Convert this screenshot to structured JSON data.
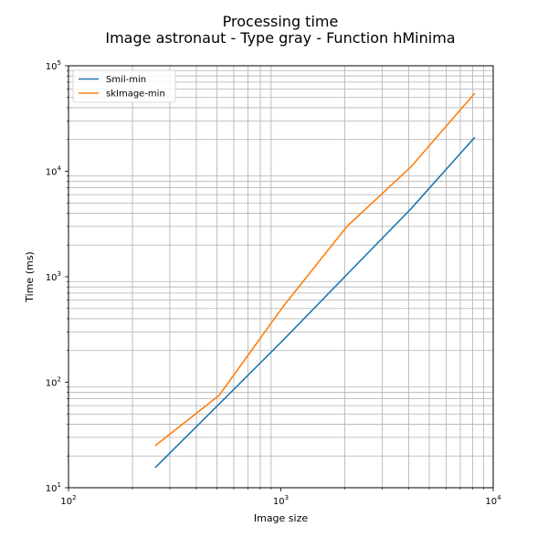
{
  "chart_data": {
    "type": "line",
    "title": [
      "Processing time",
      "Image astronaut - Type gray - Function hMinima"
    ],
    "xlabel": "Image size",
    "ylabel": "Time (ms)",
    "xscale": "log",
    "yscale": "log",
    "xlim": [
      100,
      10000
    ],
    "ylim": [
      10,
      100000
    ],
    "grid": "both-major-minor",
    "legend_position": "top-left",
    "x_ticks": [
      {
        "base": "10",
        "exp": "2",
        "value": 100
      },
      {
        "base": "10",
        "exp": "3",
        "value": 1000
      },
      {
        "base": "10",
        "exp": "4",
        "value": 10000
      }
    ],
    "y_ticks": [
      {
        "base": "10",
        "exp": "1",
        "value": 10
      },
      {
        "base": "10",
        "exp": "2",
        "value": 100
      },
      {
        "base": "10",
        "exp": "3",
        "value": 1000
      },
      {
        "base": "10",
        "exp": "4",
        "value": 10000
      },
      {
        "base": "10",
        "exp": "5",
        "value": 100000
      }
    ],
    "series": [
      {
        "name": "Smil-min",
        "color": "#1f77b4",
        "x": [
          256,
          512,
          1024,
          2048,
          4096,
          8192
        ],
        "y": [
          15.5,
          62,
          250,
          1050,
          4400,
          21000
        ]
      },
      {
        "name": "skImage-min",
        "color": "#ff7f0e",
        "x": [
          256,
          512,
          1024,
          2048,
          4096,
          8192
        ],
        "y": [
          25,
          75,
          520,
          3000,
          11000,
          55000
        ]
      }
    ]
  }
}
